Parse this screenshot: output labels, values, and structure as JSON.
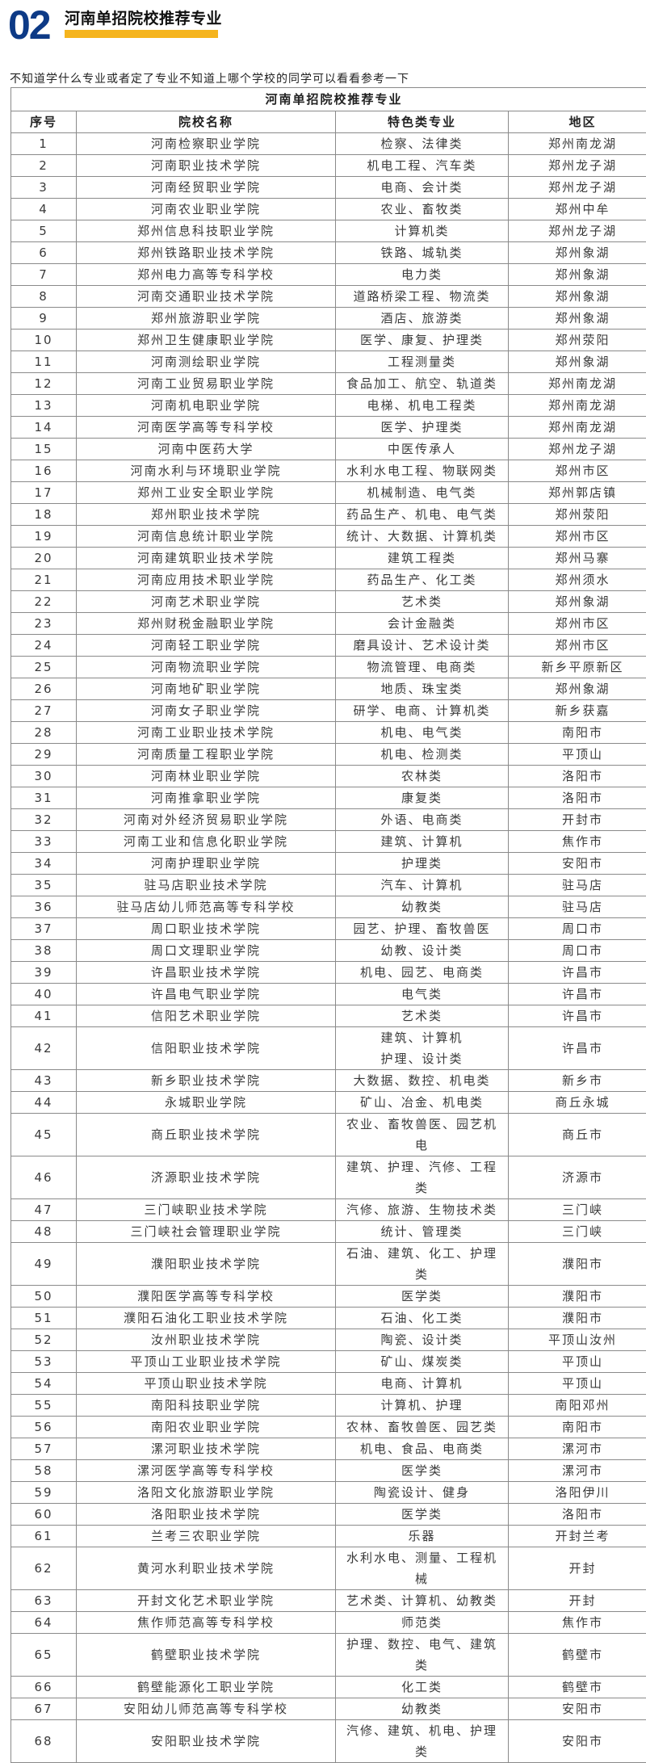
{
  "header": {
    "number": "02",
    "title": "河南单招院校推荐专业",
    "accent_color": "#f5b41e",
    "number_color": "#0d3a86"
  },
  "intro": "不知道学什么专业或者定了专业不知道上哪个学校的同学可以看看参考一下",
  "table": {
    "title": "河南单招院校推荐专业",
    "columns": [
      "序号",
      "院校名称",
      "特色类专业",
      "地区"
    ],
    "rows": [
      [
        "1",
        "河南检察职业学院",
        "检察、法律类",
        "郑州南龙湖"
      ],
      [
        "2",
        "河南职业技术学院",
        "机电工程、汽车类",
        "郑州龙子湖"
      ],
      [
        "3",
        "河南经贸职业学院",
        "电商、会计类",
        "郑州龙子湖"
      ],
      [
        "4",
        "河南农业职业学院",
        "农业、畜牧类",
        "郑州中牟"
      ],
      [
        "5",
        "郑州信息科技职业学院",
        "计算机类",
        "郑州龙子湖"
      ],
      [
        "6",
        "郑州铁路职业技术学院",
        "铁路、城轨类",
        "郑州象湖"
      ],
      [
        "7",
        "郑州电力高等专科学校",
        "电力类",
        "郑州象湖"
      ],
      [
        "8",
        "河南交通职业技术学院",
        "道路桥梁工程、物流类",
        "郑州象湖"
      ],
      [
        "9",
        "郑州旅游职业学院",
        "酒店、旅游类",
        "郑州象湖"
      ],
      [
        "10",
        "郑州卫生健康职业学院",
        "医学、康复、护理类",
        "郑州荥阳"
      ],
      [
        "11",
        "河南测绘职业学院",
        "工程测量类",
        "郑州象湖"
      ],
      [
        "12",
        "河南工业贸易职业学院",
        "食品加工、航空、轨道类",
        "郑州南龙湖"
      ],
      [
        "13",
        "河南机电职业学院",
        "电梯、机电工程类",
        "郑州南龙湖"
      ],
      [
        "14",
        "河南医学高等专科学校",
        "医学、护理类",
        "郑州南龙湖"
      ],
      [
        "15",
        "河南中医药大学",
        "中医传承人",
        "郑州龙子湖"
      ],
      [
        "16",
        "河南水利与环境职业学院",
        "水利水电工程、物联网类",
        "郑州市区"
      ],
      [
        "17",
        "郑州工业安全职业学院",
        "机械制造、电气类",
        "郑州郭店镇"
      ],
      [
        "18",
        "郑州职业技术学院",
        "药品生产、机电、电气类",
        "郑州荥阳"
      ],
      [
        "19",
        "河南信息统计职业学院",
        "统计、大数据、计算机类",
        "郑州市区"
      ],
      [
        "20",
        "河南建筑职业技术学院",
        "建筑工程类",
        "郑州马寨"
      ],
      [
        "21",
        "河南应用技术职业学院",
        "药品生产、化工类",
        "郑州须水"
      ],
      [
        "22",
        "河南艺术职业学院",
        "艺术类",
        "郑州象湖"
      ],
      [
        "23",
        "郑州财税金融职业学院",
        "会计金融类",
        "郑州市区"
      ],
      [
        "24",
        "河南轻工职业学院",
        "磨具设计、艺术设计类",
        "郑州市区"
      ],
      [
        "25",
        "河南物流职业学院",
        "物流管理、电商类",
        "新乡平原新区"
      ],
      [
        "26",
        "河南地矿职业学院",
        "地质、珠宝类",
        "郑州象湖"
      ],
      [
        "27",
        "河南女子职业学院",
        "研学、电商、计算机类",
        "新乡获嘉"
      ],
      [
        "28",
        "河南工业职业技术学院",
        "机电、电气类",
        "南阳市"
      ],
      [
        "29",
        "河南质量工程职业学院",
        "机电、检测类",
        "平顶山"
      ],
      [
        "30",
        "河南林业职业学院",
        "农林类",
        "洛阳市"
      ],
      [
        "31",
        "河南推拿职业学院",
        "康复类",
        "洛阳市"
      ],
      [
        "32",
        "河南对外经济贸易职业学院",
        "外语、电商类",
        "开封市"
      ],
      [
        "33",
        "河南工业和信息化职业学院",
        "建筑、计算机",
        "焦作市"
      ],
      [
        "34",
        "河南护理职业学院",
        "护理类",
        "安阳市"
      ],
      [
        "35",
        "驻马店职业技术学院",
        "汽车、计算机",
        "驻马店"
      ],
      [
        "36",
        "驻马店幼儿师范高等专科学校",
        "幼教类",
        "驻马店"
      ],
      [
        "37",
        "周口职业技术学院",
        "园艺、护理、畜牧兽医",
        "周口市"
      ],
      [
        "38",
        "周口文理职业学院",
        "幼教、设计类",
        "周口市"
      ],
      [
        "39",
        "许昌职业技术学院",
        "机电、园艺、电商类",
        "许昌市"
      ],
      [
        "40",
        "许昌电气职业学院",
        "电气类",
        "许昌市"
      ],
      [
        "41",
        "信阳艺术职业学院",
        "艺术类",
        "许昌市"
      ],
      [
        "42",
        "信阳职业技术学院",
        "建筑、计算机\n护理、设计类",
        "许昌市"
      ],
      [
        "43",
        "新乡职业技术学院",
        "大数据、数控、机电类",
        "新乡市"
      ],
      [
        "44",
        "永城职业学院",
        "矿山、冶金、机电类",
        "商丘永城"
      ],
      [
        "45",
        "商丘职业技术学院",
        "农业、畜牧兽医、园艺机\n电",
        "商丘市"
      ],
      [
        "46",
        "济源职业技术学院",
        "建筑、护理、汽修、工程\n类",
        "济源市"
      ],
      [
        "47",
        "三门峡职业技术学院",
        "汽修、旅游、生物技术类",
        "三门峡"
      ],
      [
        "48",
        "三门峡社会管理职业学院",
        "统计、管理类",
        "三门峡"
      ],
      [
        "49",
        "濮阳职业技术学院",
        "石油、建筑、化工、护理\n类",
        "濮阳市"
      ],
      [
        "50",
        "濮阳医学高等专科学校",
        "医学类",
        "濮阳市"
      ],
      [
        "51",
        "濮阳石油化工职业技术学院",
        "石油、化工类",
        "濮阳市"
      ],
      [
        "52",
        "汝州职业技术学院",
        "陶瓷、设计类",
        "平顶山汝州"
      ],
      [
        "53",
        "平顶山工业职业技术学院",
        "矿山、煤炭类",
        "平顶山"
      ],
      [
        "54",
        "平顶山职业技术学院",
        "电商、计算机",
        "平顶山"
      ],
      [
        "55",
        "南阳科技职业学院",
        "计算机、护理",
        "南阳邓州"
      ],
      [
        "56",
        "南阳农业职业学院",
        "农林、畜牧兽医、园艺类",
        "南阳市"
      ],
      [
        "57",
        "漯河职业技术学院",
        "机电、食品、电商类",
        "漯河市"
      ],
      [
        "58",
        "漯河医学高等专科学校",
        "医学类",
        "漯河市"
      ],
      [
        "59",
        "洛阳文化旅游职业学院",
        "陶瓷设计、健身",
        "洛阳伊川"
      ],
      [
        "60",
        "洛阳职业技术学院",
        "医学类",
        "洛阳市"
      ],
      [
        "61",
        "兰考三农职业学院",
        "乐器",
        "开封兰考"
      ],
      [
        "62",
        "黄河水利职业技术学院",
        "水利水电、测量、工程机\n械",
        "开封"
      ],
      [
        "63",
        "开封文化艺术职业学院",
        "艺术类、计算机、幼教类",
        "开封"
      ],
      [
        "64",
        "焦作师范高等专科学校",
        "师范类",
        "焦作市"
      ],
      [
        "65",
        "鹤壁职业技术学院",
        "护理、数控、电气、建筑\n类",
        "鹤壁市"
      ],
      [
        "66",
        "鹤壁能源化工职业学院",
        "化工类",
        "鹤壁市"
      ],
      [
        "67",
        "安阳幼儿师范高等专科学校",
        "幼教类",
        "安阳市"
      ],
      [
        "68",
        "安阳职业技术学院",
        "汽修、建筑、机电、护理\n类",
        "安阳市"
      ]
    ]
  }
}
